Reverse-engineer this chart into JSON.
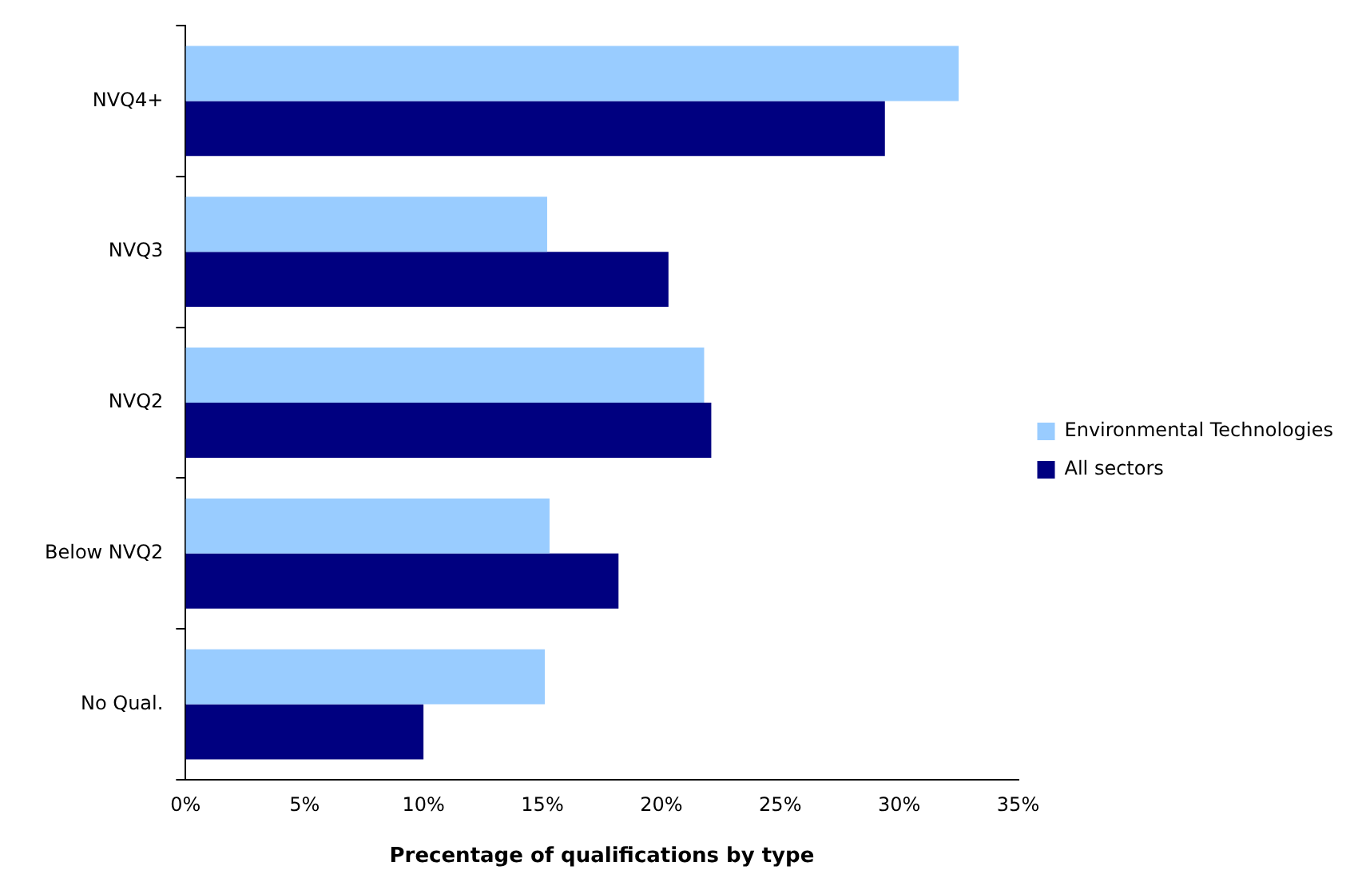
{
  "chart_data": {
    "type": "bar",
    "orientation": "horizontal",
    "xlabel": "Precentage of qualifications by type",
    "categories": [
      "NVQ4+",
      "NVQ3",
      "NVQ2",
      "Below NVQ2",
      "No Qual."
    ],
    "series": [
      {
        "name": "Environmental Technologies",
        "color": "#99ccff",
        "values": [
          32.5,
          15.2,
          21.8,
          15.3,
          15.1
        ]
      },
      {
        "name": "All sectors",
        "color": "#000080",
        "values": [
          29.4,
          20.3,
          22.1,
          18.2,
          10.0
        ]
      }
    ],
    "xlim": [
      0,
      35
    ],
    "xticks": [
      {
        "value": 0,
        "label": "0%"
      },
      {
        "value": 5,
        "label": "5%"
      },
      {
        "value": 10,
        "label": "10%"
      },
      {
        "value": 15,
        "label": "15%"
      },
      {
        "value": 20,
        "label": "20%"
      },
      {
        "value": 25,
        "label": "25%"
      },
      {
        "value": 30,
        "label": "30%"
      },
      {
        "value": 35,
        "label": "35%"
      }
    ],
    "grid": false,
    "legend": "right"
  }
}
